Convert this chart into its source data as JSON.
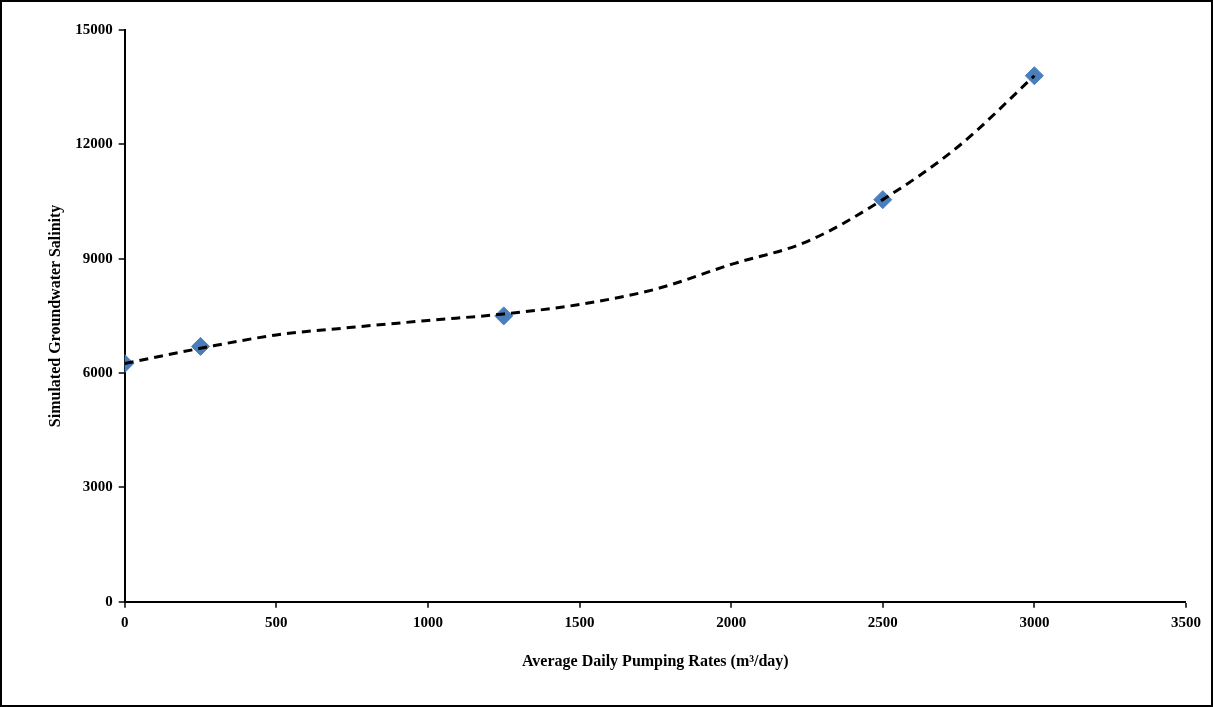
{
  "chart_data": {
    "type": "scatter",
    "xlabel": "Average Daily Pumping Rates (m³/day)",
    "ylabel": "Simulated Groundwater Salinity",
    "xlim": [
      0,
      3500
    ],
    "xticks": [
      0,
      500,
      1000,
      1500,
      2000,
      2500,
      3000,
      3500
    ],
    "ylim": [
      0,
      15000
    ],
    "yticks": [
      0,
      3000,
      6000,
      9000,
      12000,
      15000
    ],
    "grid": false,
    "legend": false,
    "series": [
      {
        "type": "scatter",
        "color": "#4a7ebb",
        "marker": "diamond",
        "x": [
          0,
          250,
          1250,
          2500,
          3000
        ],
        "values": [
          6250,
          6700,
          7500,
          10550,
          13800
        ]
      },
      {
        "type": "line",
        "color": "#000000",
        "marker": "none",
        "line_style": "dashed",
        "x": [
          0,
          250,
          500,
          750,
          1000,
          1250,
          1500,
          1750,
          2000,
          2250,
          2500,
          2750,
          3000
        ],
        "values": [
          6250,
          6650,
          7000,
          7200,
          7380,
          7550,
          7800,
          8200,
          8850,
          9450,
          10550,
          11950,
          13800
        ]
      }
    ]
  }
}
